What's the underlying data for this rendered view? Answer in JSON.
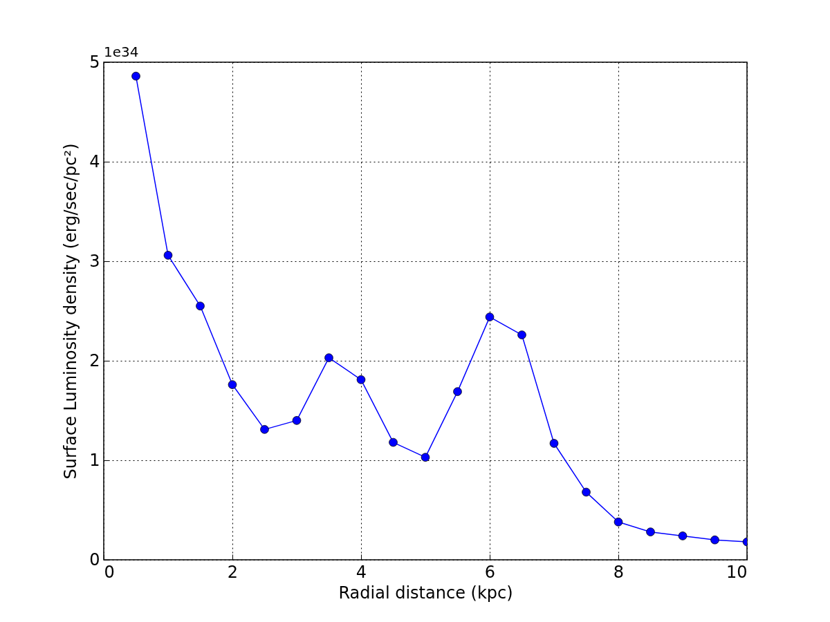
{
  "chart_data": {
    "type": "line",
    "xlabel": "Radial distance (kpc)",
    "ylabel": "Surface Luminosity density (erg/sec/pc²)",
    "annotations": [
      "1e34"
    ],
    "x": [
      0.5,
      1.0,
      1.5,
      2.0,
      2.5,
      3.0,
      3.5,
      4.0,
      4.5,
      5.0,
      5.5,
      6.0,
      6.5,
      7.0,
      7.5,
      8.0,
      8.5,
      9.0,
      9.5,
      10.0
    ],
    "series": [
      {
        "color": "#0000ff",
        "values": [
          4.86,
          3.06,
          2.55,
          1.76,
          1.31,
          1.4,
          2.03,
          1.81,
          1.18,
          1.03,
          1.69,
          2.44,
          2.26,
          1.17,
          0.68,
          0.38,
          0.28,
          0.24,
          0.2,
          0.18
        ]
      }
    ],
    "xlim": [
      0,
      10
    ],
    "ylim": [
      0,
      5
    ],
    "xticks": [
      0,
      2,
      4,
      6,
      8,
      10
    ],
    "yticks": [
      0,
      1,
      2,
      3,
      4,
      5
    ],
    "grid": true,
    "marker": "circle",
    "line_style": "solid"
  }
}
